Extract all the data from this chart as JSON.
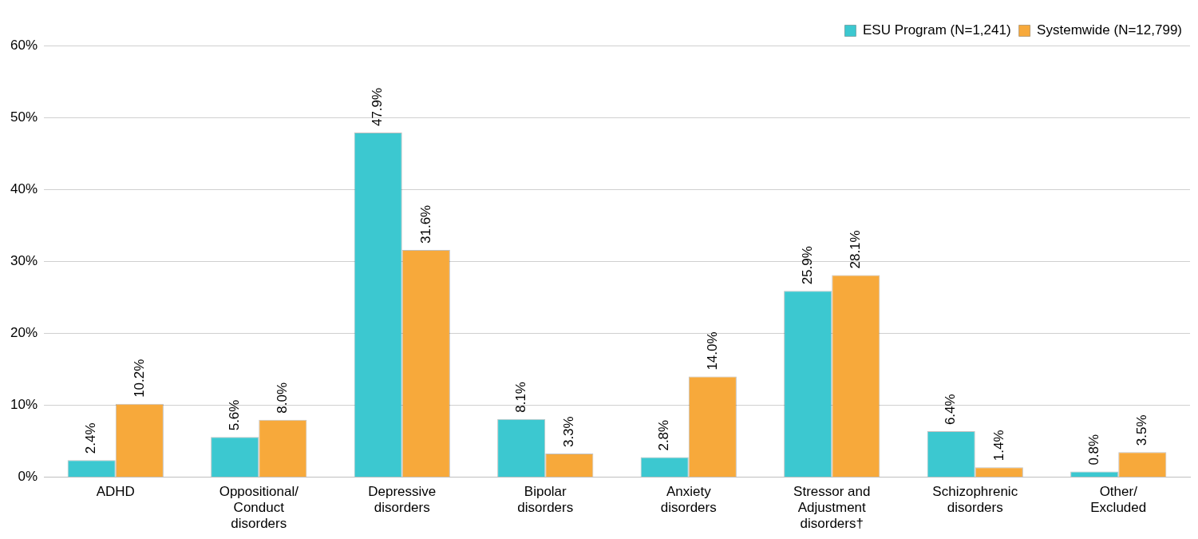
{
  "chart_data": {
    "type": "bar",
    "categories": [
      "ADHD",
      "Oppositional/ Conduct disorders",
      "Depressive disorders",
      "Bipolar disorders",
      "Anxiety disorders",
      "Stressor and Adjustment disorders†",
      "Schizophrenic disorders",
      "Other/ Excluded"
    ],
    "series": [
      {
        "name": "ESU Program (N=1,241)",
        "color": "#3cc8d0",
        "values": [
          2.4,
          5.6,
          47.9,
          8.1,
          2.8,
          25.9,
          6.4,
          0.8
        ],
        "value_labels": [
          "2.4%",
          "5.6%",
          "47.9%",
          "8.1%",
          "2.8%",
          "25.9%",
          "6.4%",
          "0.8%"
        ]
      },
      {
        "name": "Systemwide (N=12,799)",
        "color": "#f7a93b",
        "values": [
          10.2,
          8.0,
          31.6,
          3.3,
          14.0,
          28.1,
          1.4,
          3.5
        ],
        "value_labels": [
          "10.2%",
          "8.0%",
          "31.6%",
          "3.3%",
          "14.0%",
          "28.1%",
          "1.4%",
          "3.5%"
        ]
      }
    ],
    "ylim": [
      0,
      60
    ],
    "yticks": [
      {
        "value": 0,
        "label": "0%"
      },
      {
        "value": 10,
        "label": "10%"
      },
      {
        "value": 20,
        "label": "20%"
      },
      {
        "value": 30,
        "label": "30%"
      },
      {
        "value": 40,
        "label": "40%"
      },
      {
        "value": 50,
        "label": "50%"
      },
      {
        "value": 60,
        "label": "60%"
      }
    ],
    "grid": "y",
    "legend": "top right"
  }
}
